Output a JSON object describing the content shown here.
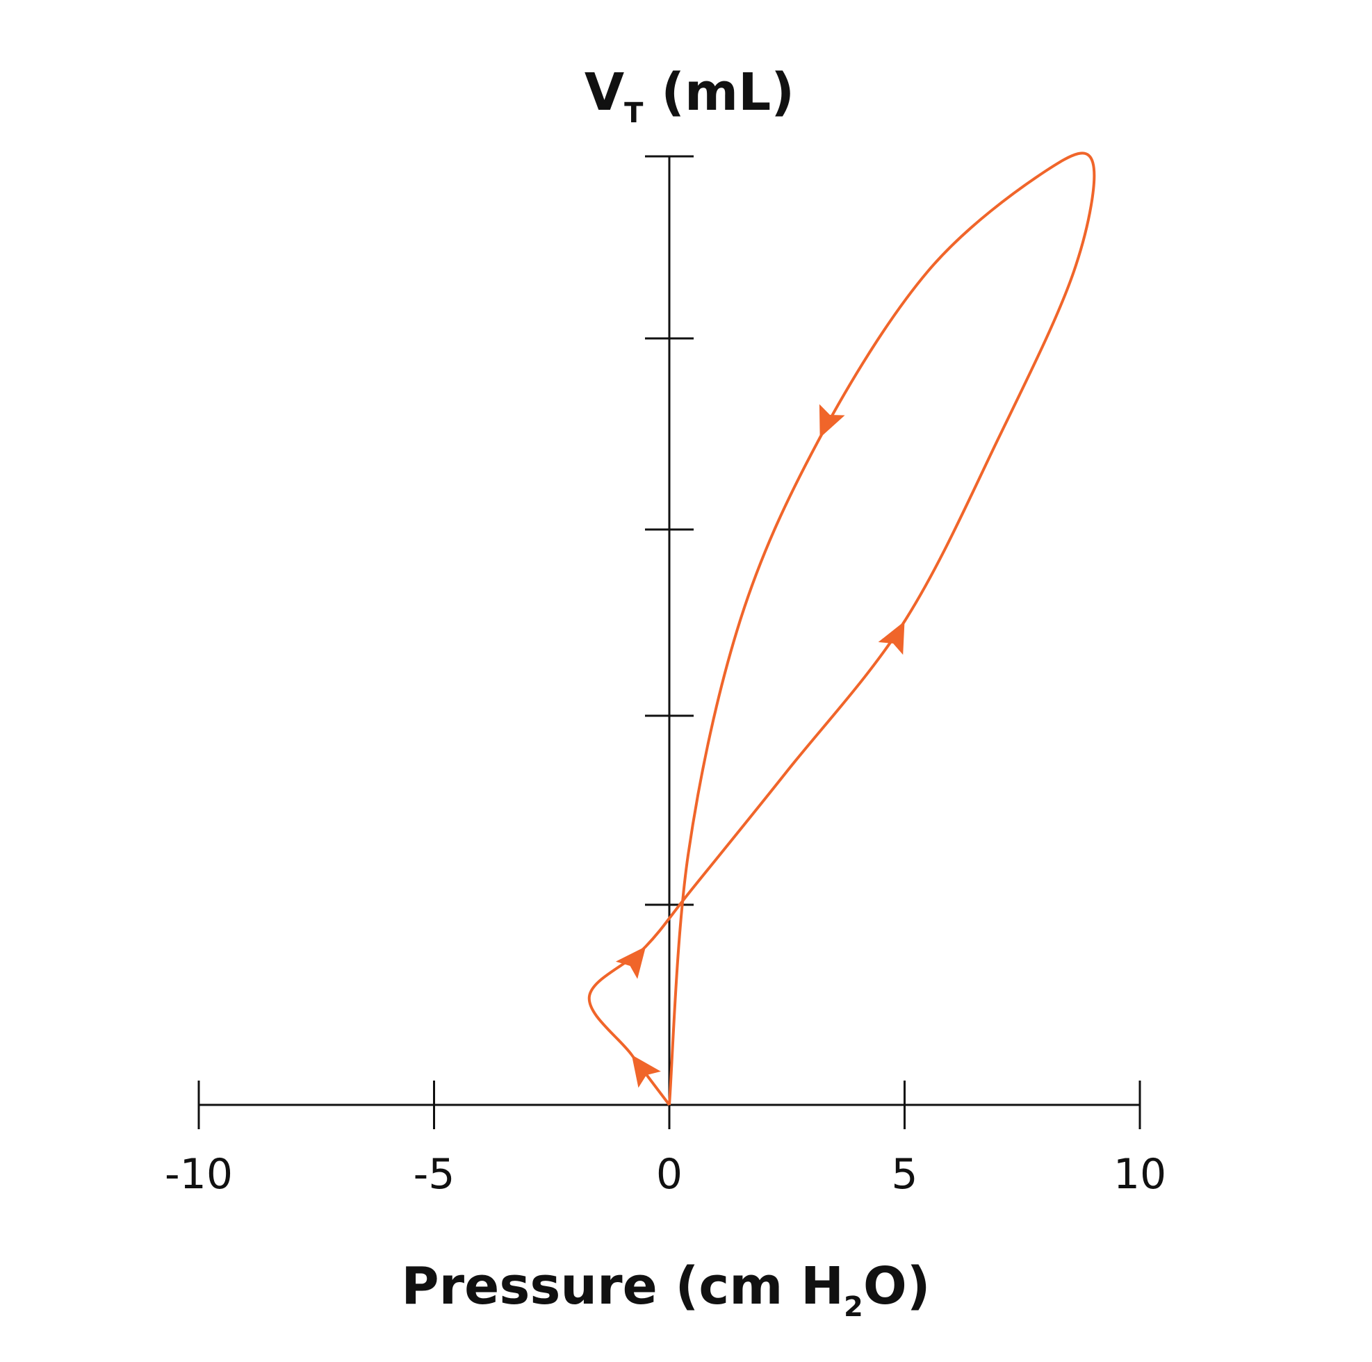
{
  "chart_data": {
    "type": "line",
    "title": "",
    "xlabel": {
      "main": "Pressure (cm H",
      "sub": "2",
      "after": "O)"
    },
    "ylabel": {
      "main": "V",
      "sub": "T",
      "after": " (mL)"
    },
    "xlim": [
      -10,
      10
    ],
    "x_ticks": [
      -10,
      -5,
      0,
      5,
      10
    ],
    "x_tick_labels": [
      "-10",
      "-5",
      "0",
      "5",
      "10"
    ],
    "y_tick_count": 6,
    "y_tick_labels": [],
    "grid": false,
    "legend": "none",
    "series": [
      {
        "color": "#f0652a",
        "x": [
          0,
          -0.8,
          -1.7,
          -0.5,
          0.5,
          2.5,
          5.0,
          7.0,
          8.6,
          9.0,
          8.0,
          5.5,
          3.2,
          1.5,
          0.4,
          0
        ],
        "y": [
          0,
          0.3,
          0.65,
          0.95,
          1.3,
          2.0,
          2.9,
          4.0,
          5.0,
          5.65,
          5.6,
          5.0,
          4.0,
          2.9,
          1.5,
          0
        ],
        "arrows_at_index": [
          1,
          3,
          6,
          12
        ]
      }
    ]
  }
}
